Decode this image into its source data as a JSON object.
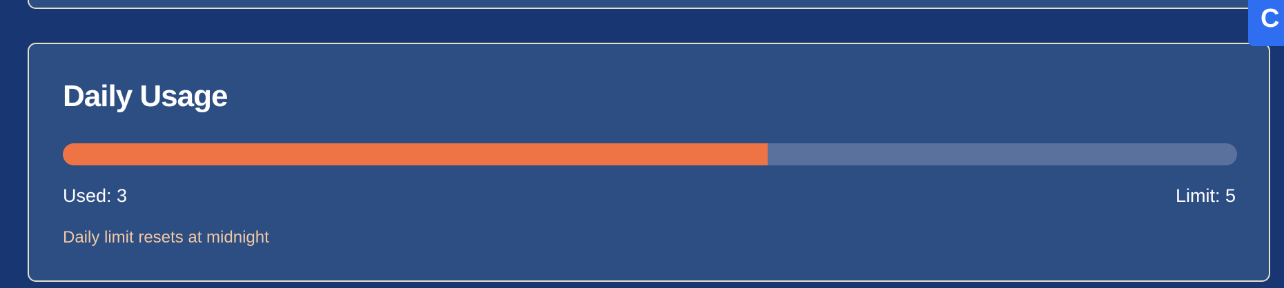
{
  "usage_card": {
    "title": "Daily Usage",
    "used_label": "Used: 3",
    "limit_label": "Limit: 5",
    "progress_fraction": 0.6,
    "note": "Daily limit resets at midnight"
  },
  "corner_badge": {
    "glyph": "C"
  },
  "colors": {
    "page_bg": "#173672",
    "card_bg": "#2d4e83",
    "card_border": "#e7e0cf",
    "progress_fill": "#ee7445",
    "progress_track": "#5a719d",
    "note_text": "#f3c9a3",
    "badge_bg": "#2f6ef0"
  }
}
